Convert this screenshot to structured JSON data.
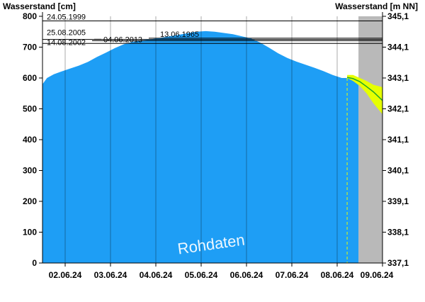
{
  "chart_data": {
    "type": "area",
    "ylabel_left": "Wasserstand [cm]",
    "ylabel_right": "Wasserstand [m NN]",
    "y_left_range": [
      0,
      800
    ],
    "y_left_ticks": [
      0,
      100,
      200,
      300,
      400,
      500,
      600,
      700,
      800
    ],
    "y_right_range": [
      337.1,
      345.1
    ],
    "y_right_ticks": [
      "337,1",
      "338,1",
      "339,1",
      "340,1",
      "341,1",
      "342,1",
      "343,1",
      "344,1",
      "345,1"
    ],
    "x_range": [
      "01.06.24 12:00",
      "09.06.24 00:00"
    ],
    "x_ticks": [
      "02.06.24",
      "03.06.24",
      "04.06.24",
      "05.06.24",
      "06.06.24",
      "07.06.24",
      "08.06.24",
      "09.06.24"
    ],
    "x_tick_days": [
      1.5,
      2.5,
      3.5,
      4.5,
      5.5,
      6.5,
      7.5,
      8.5
    ],
    "x_span_days": [
      1,
      8.5
    ],
    "grid": true,
    "watermark": "Rohdaten",
    "measured_color": "#1E9EF5",
    "forecast_band_color": "#E6FF00",
    "forecast_line_color": "#1FA52A",
    "forecast_bg_color": "#B9B9B9",
    "forecast_start_day": 7.72,
    "forecast_bg_start_day": 7.97,
    "flood_marks": [
      {
        "date": "24.05.1999",
        "value": 785
      },
      {
        "date": "13.06.1965",
        "value": 729
      },
      {
        "date": "25.08.2005",
        "value": 725
      },
      {
        "date": "04.06.2013",
        "value": 721
      },
      {
        "date": "14.08.2002",
        "value": 712
      }
    ],
    "measured": {
      "x": [
        1.0,
        1.1,
        1.25,
        1.4,
        1.6,
        1.8,
        2.0,
        2.2,
        2.4,
        2.6,
        2.8,
        3.0,
        3.2,
        3.4,
        3.6,
        3.8,
        4.0,
        4.2,
        4.4,
        4.6,
        4.8,
        5.0,
        5.2,
        5.4,
        5.6,
        5.8,
        6.0,
        6.2,
        6.4,
        6.6,
        6.8,
        7.0,
        7.2,
        7.4,
        7.6,
        7.72,
        7.97
      ],
      "y": [
        580,
        600,
        612,
        620,
        630,
        640,
        652,
        668,
        682,
        697,
        710,
        718,
        722,
        726,
        730,
        735,
        740,
        745,
        750,
        752,
        750,
        746,
        742,
        735,
        728,
        715,
        698,
        680,
        665,
        653,
        643,
        633,
        622,
        610,
        600,
        600,
        590
      ]
    },
    "forecast": {
      "x": [
        7.72,
        7.85,
        8.0,
        8.15,
        8.3,
        8.5
      ],
      "y": [
        602,
        598,
        588,
        572,
        555,
        527
      ],
      "upper": [
        610,
        610,
        600,
        590,
        578,
        570
      ],
      "lower": [
        600,
        590,
        574,
        550,
        518,
        482
      ]
    }
  }
}
